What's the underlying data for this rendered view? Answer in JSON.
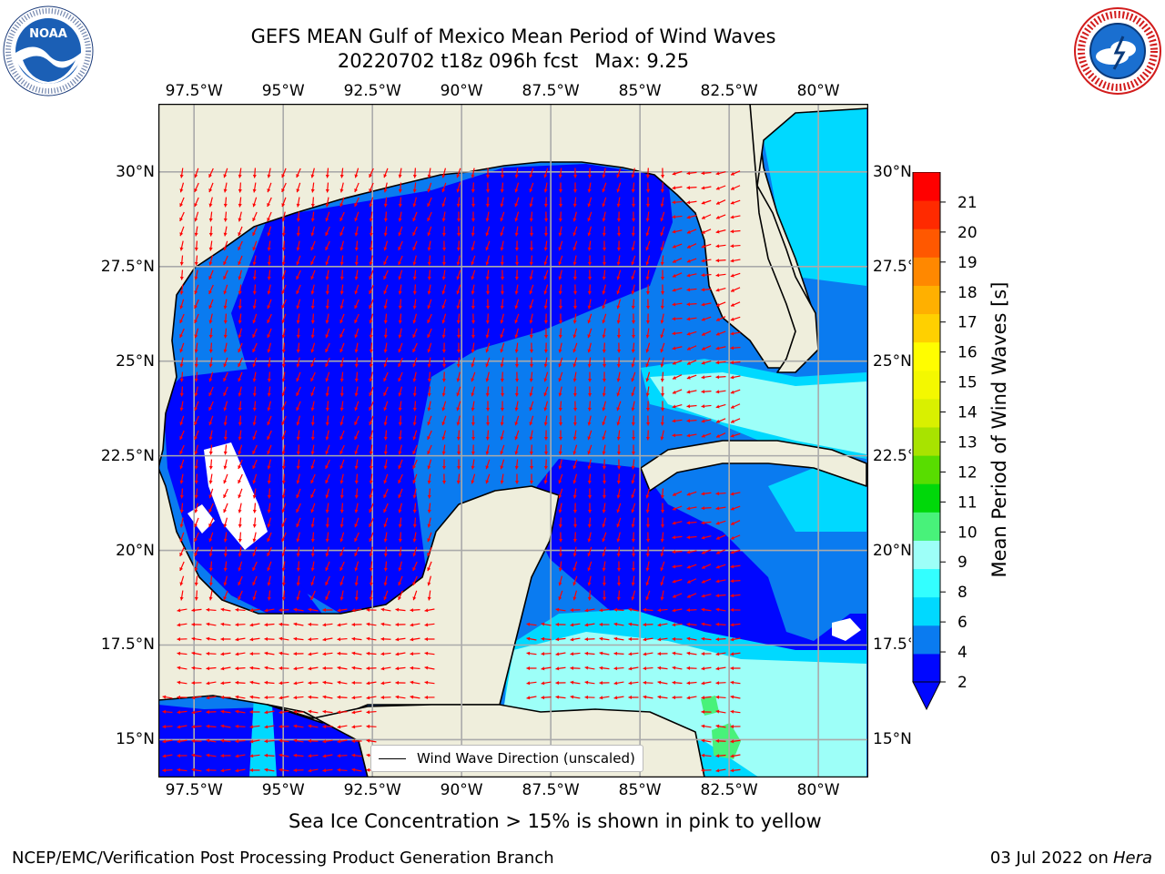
{
  "title": {
    "line1": "GEFS MEAN Gulf of Mexico Mean Period of Wind Waves",
    "line2_date": "20220702 t18z 096h fcst",
    "line2_max": "Max: 9.25"
  },
  "logos": {
    "left": "noaa-logo",
    "right": "national-weather-service-logo"
  },
  "map": {
    "lon_range": [
      -98.5,
      -78.6
    ],
    "lat_range": [
      14.0,
      31.8
    ],
    "lon_ticks": [
      {
        "value": -97.5,
        "label": "97.5°W"
      },
      {
        "value": -95,
        "label": "95°W"
      },
      {
        "value": -92.5,
        "label": "92.5°W"
      },
      {
        "value": -90,
        "label": "90°W"
      },
      {
        "value": -87.5,
        "label": "87.5°W"
      },
      {
        "value": -85,
        "label": "85°W"
      },
      {
        "value": -82.5,
        "label": "82.5°W"
      },
      {
        "value": -80,
        "label": "80°W"
      }
    ],
    "lat_ticks": [
      {
        "value": 30,
        "label": "30°N"
      },
      {
        "value": 27.5,
        "label": "27.5°N"
      },
      {
        "value": 25,
        "label": "25°N"
      },
      {
        "value": 22.5,
        "label": "22.5°N"
      },
      {
        "value": 20,
        "label": "20°N"
      },
      {
        "value": 17.5,
        "label": "17.5°N"
      },
      {
        "value": 15,
        "label": "15°N"
      }
    ],
    "gridlines": true,
    "land_color": "#efeedc",
    "arrow_color": "#ff0000",
    "legend": {
      "label": "Wind Wave Direction (unscaled)",
      "placement": "bottom-center"
    }
  },
  "colorbar": {
    "label": "Mean Period of Wind Waves [s]",
    "levels": [
      2,
      3,
      4,
      5,
      6,
      7,
      8,
      9,
      10,
      11,
      12,
      13,
      14,
      15,
      16,
      17,
      18,
      19,
      20,
      21
    ],
    "tick_labels": [
      "2",
      "4",
      "6",
      "8",
      "9",
      "10",
      "11",
      "12",
      "13",
      "14",
      "15",
      "16",
      "17",
      "18",
      "19",
      "20",
      "21"
    ],
    "colors": [
      "#0007ff",
      "#0a7bf0",
      "#00d9ff",
      "#33ffff",
      "#9dfff8",
      "#48f27a",
      "#00d80a",
      "#58dd00",
      "#a8e300",
      "#d9f000",
      "#f4f800",
      "#fffd00",
      "#ffd000",
      "#ffb000",
      "#ff8800",
      "#ff5800",
      "#ff2a00",
      "#ff0000"
    ],
    "extend": "min",
    "under_color": "#0007ff"
  },
  "subtitle": "Sea Ice Concentration > 15% is shown in pink to yellow",
  "footer": {
    "left": "NCEP/EMC/Verification Post Processing Product Generation Branch",
    "right_date": "03 Jul 2022 on",
    "right_host": "Hera"
  }
}
